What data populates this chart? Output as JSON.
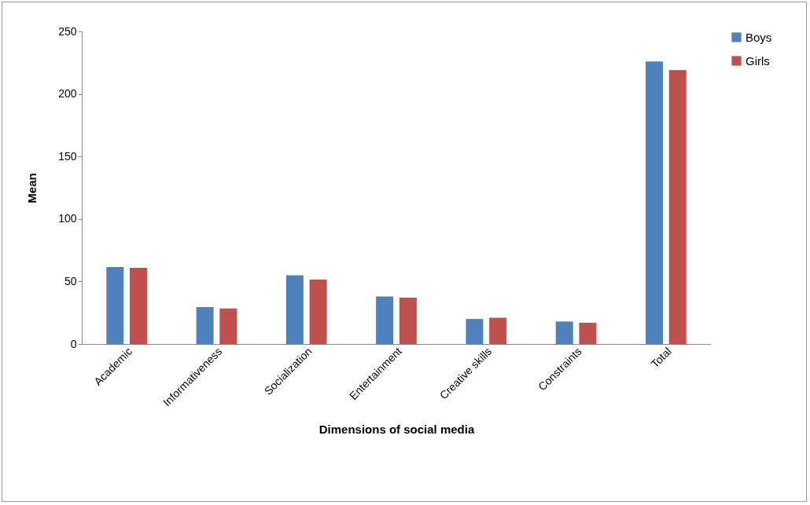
{
  "chart_data": {
    "type": "bar",
    "xlabel": "Dimensions of social media",
    "ylabel": "Mean",
    "categories": [
      "Academic",
      "Informativeness",
      "Socialization",
      "Entertainment",
      "Creative skills",
      "Constraints",
      "Total"
    ],
    "series": [
      {
        "name": "Boys",
        "color": "#4f81bd",
        "values": [
          61.5,
          29.5,
          55,
          38,
          20,
          18,
          226
        ]
      },
      {
        "name": "Girls",
        "color": "#c0504d",
        "values": [
          61,
          28.5,
          51.5,
          37,
          21,
          17,
          219
        ]
      }
    ],
    "ylim": [
      0,
      250
    ],
    "yticks": [
      0,
      50,
      100,
      150,
      200,
      250
    ],
    "grid": false,
    "legend": "right"
  }
}
